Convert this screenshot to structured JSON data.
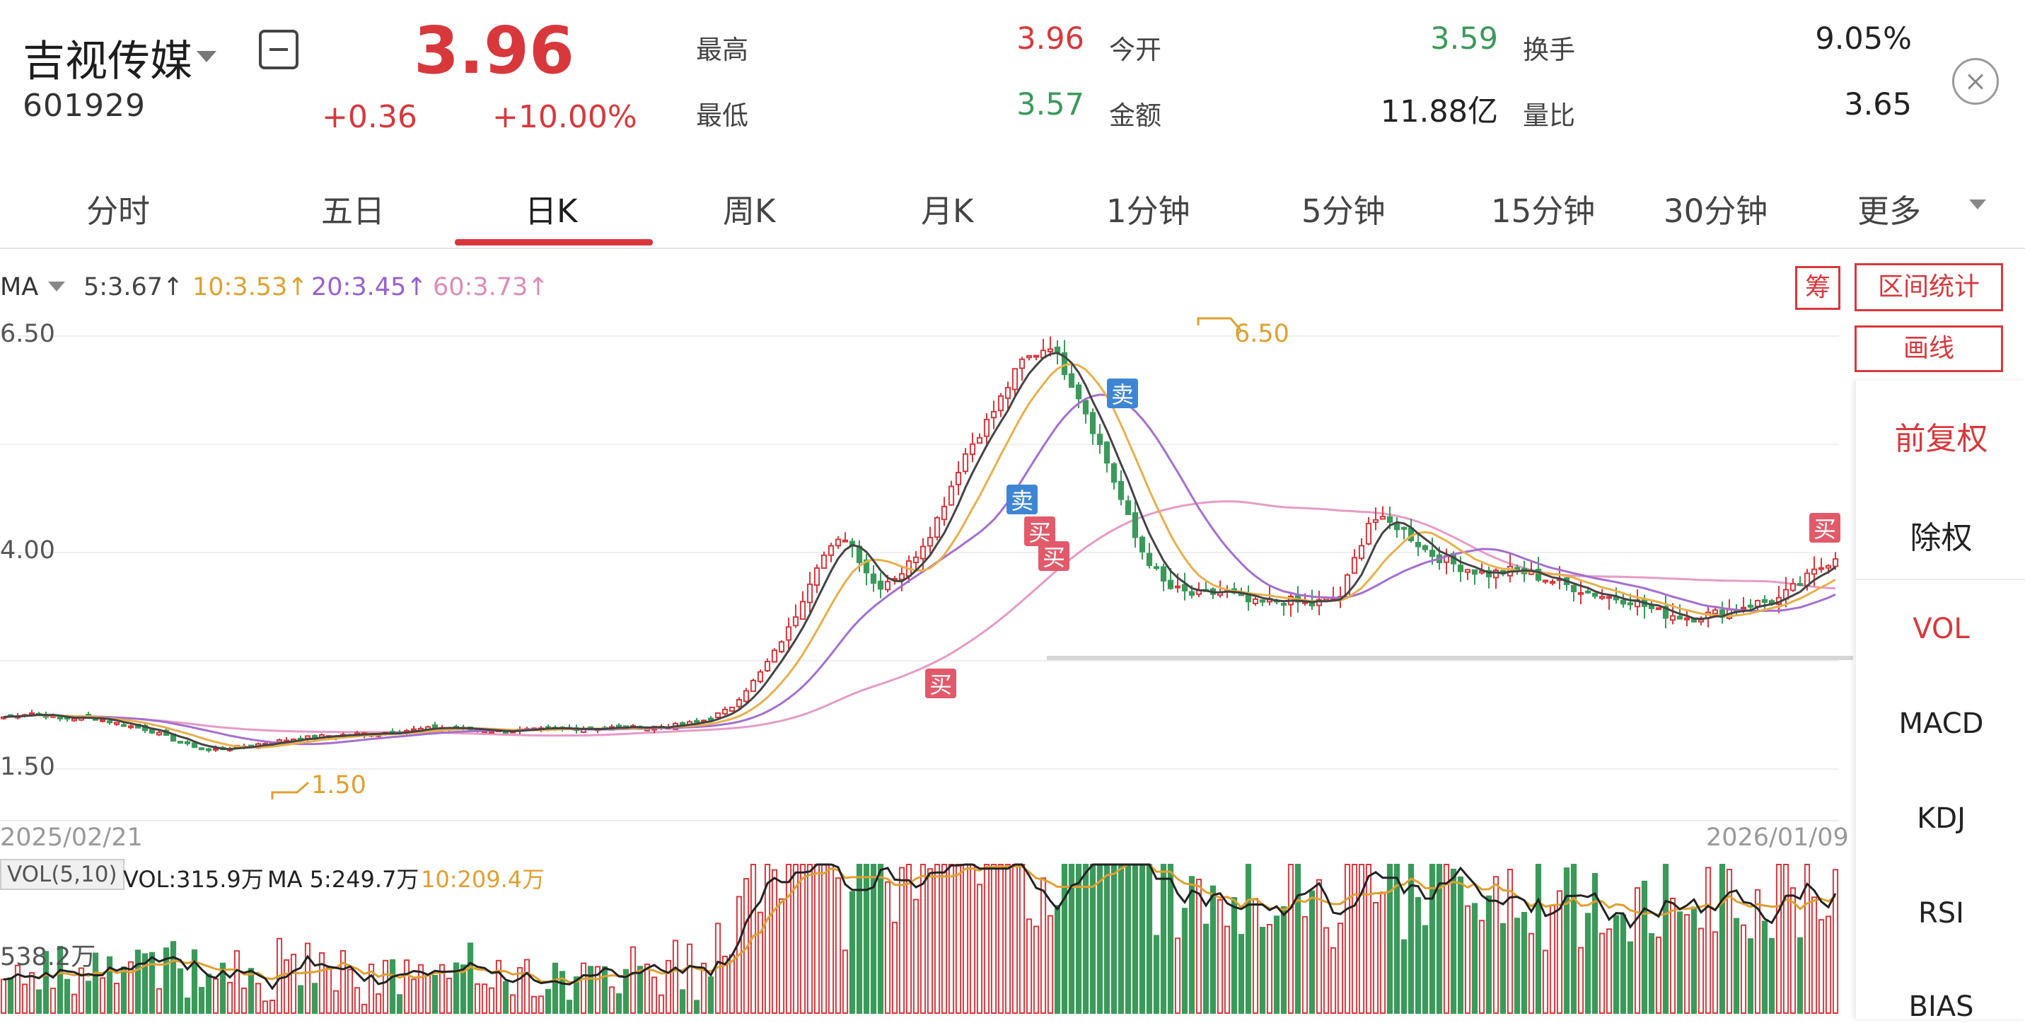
{
  "stock": {
    "name": "吉视传媒",
    "code": "601929",
    "price": "3.96",
    "change": "+0.36",
    "change_pct": "+10.00%"
  },
  "stats": {
    "high_label": "最高",
    "high": "3.96",
    "open_label": "今开",
    "open": "3.59",
    "turnover_label": "换手",
    "turnover": "9.05%",
    "low_label": "最低",
    "low": "3.57",
    "amount_label": "金额",
    "amount": "11.88亿",
    "volume_ratio_label": "量比",
    "volume_ratio": "3.65"
  },
  "tabs": [
    "分时",
    "五日",
    "日K",
    "周K",
    "月K",
    "1分钟",
    "5分钟",
    "15分钟",
    "30分钟",
    "更多"
  ],
  "active_tab": "日K",
  "ma": {
    "label": "MA",
    "ma5": "5:3.67↑",
    "ma10": "10:3.53↑",
    "ma20": "20:3.45↑",
    "ma60": "60:3.73↑"
  },
  "colors": {
    "up": "#d8383c",
    "down": "#3a9a5a",
    "ma5": "#444444",
    "ma10": "#e8b04a",
    "ma20": "#a46fd0",
    "ma60": "#e79bc6"
  },
  "price_axis": {
    "top": "6.50",
    "mid": "4.00",
    "low": "1.50"
  },
  "annotations": {
    "max_price": "6.50",
    "min_price": "1.50",
    "buy": "买",
    "sell": "卖"
  },
  "dates": {
    "start": "2025/02/21",
    "end": "2026/01/09"
  },
  "right_buttons": {
    "chip": "筹",
    "range_stats": "区间统计",
    "draw_line": "画线"
  },
  "right_panel": [
    "前复权",
    "除权",
    "VOL",
    "MACD",
    "KDJ",
    "RSI",
    "BIAS"
  ],
  "volume": {
    "indicator": "VOL(5,10)",
    "vol": "VOL:315.9万",
    "ma5": "MA 5:249.7万",
    "ma10": "10:209.4万",
    "axis_top": "538.2万"
  },
  "chart_data": {
    "type": "candlestick",
    "x_start": "2025/02/21",
    "x_end": "2026/01/09",
    "ylim": [
      1.5,
      6.5
    ],
    "close_trend": [
      2.1,
      2.15,
      2.08,
      2.1,
      2.02,
      1.95,
      1.82,
      1.72,
      1.75,
      1.8,
      1.85,
      1.88,
      1.9,
      1.92,
      1.95,
      1.98,
      1.96,
      1.94,
      1.95,
      1.96,
      1.97,
      1.98,
      1.98,
      2.0,
      2.05,
      2.2,
      2.6,
      3.1,
      3.9,
      4.2,
      3.6,
      3.8,
      4.3,
      5.1,
      5.6,
      6.2,
      6.4,
      5.8,
      5.0,
      4.1,
      3.6,
      3.5,
      3.55,
      3.4,
      3.45,
      3.4,
      3.5,
      4.4,
      4.3,
      4.0,
      3.85,
      3.75,
      3.8,
      3.7,
      3.6,
      3.5,
      3.45,
      3.3,
      3.25,
      3.3,
      3.4,
      3.45,
      3.7,
      3.96
    ]
  }
}
